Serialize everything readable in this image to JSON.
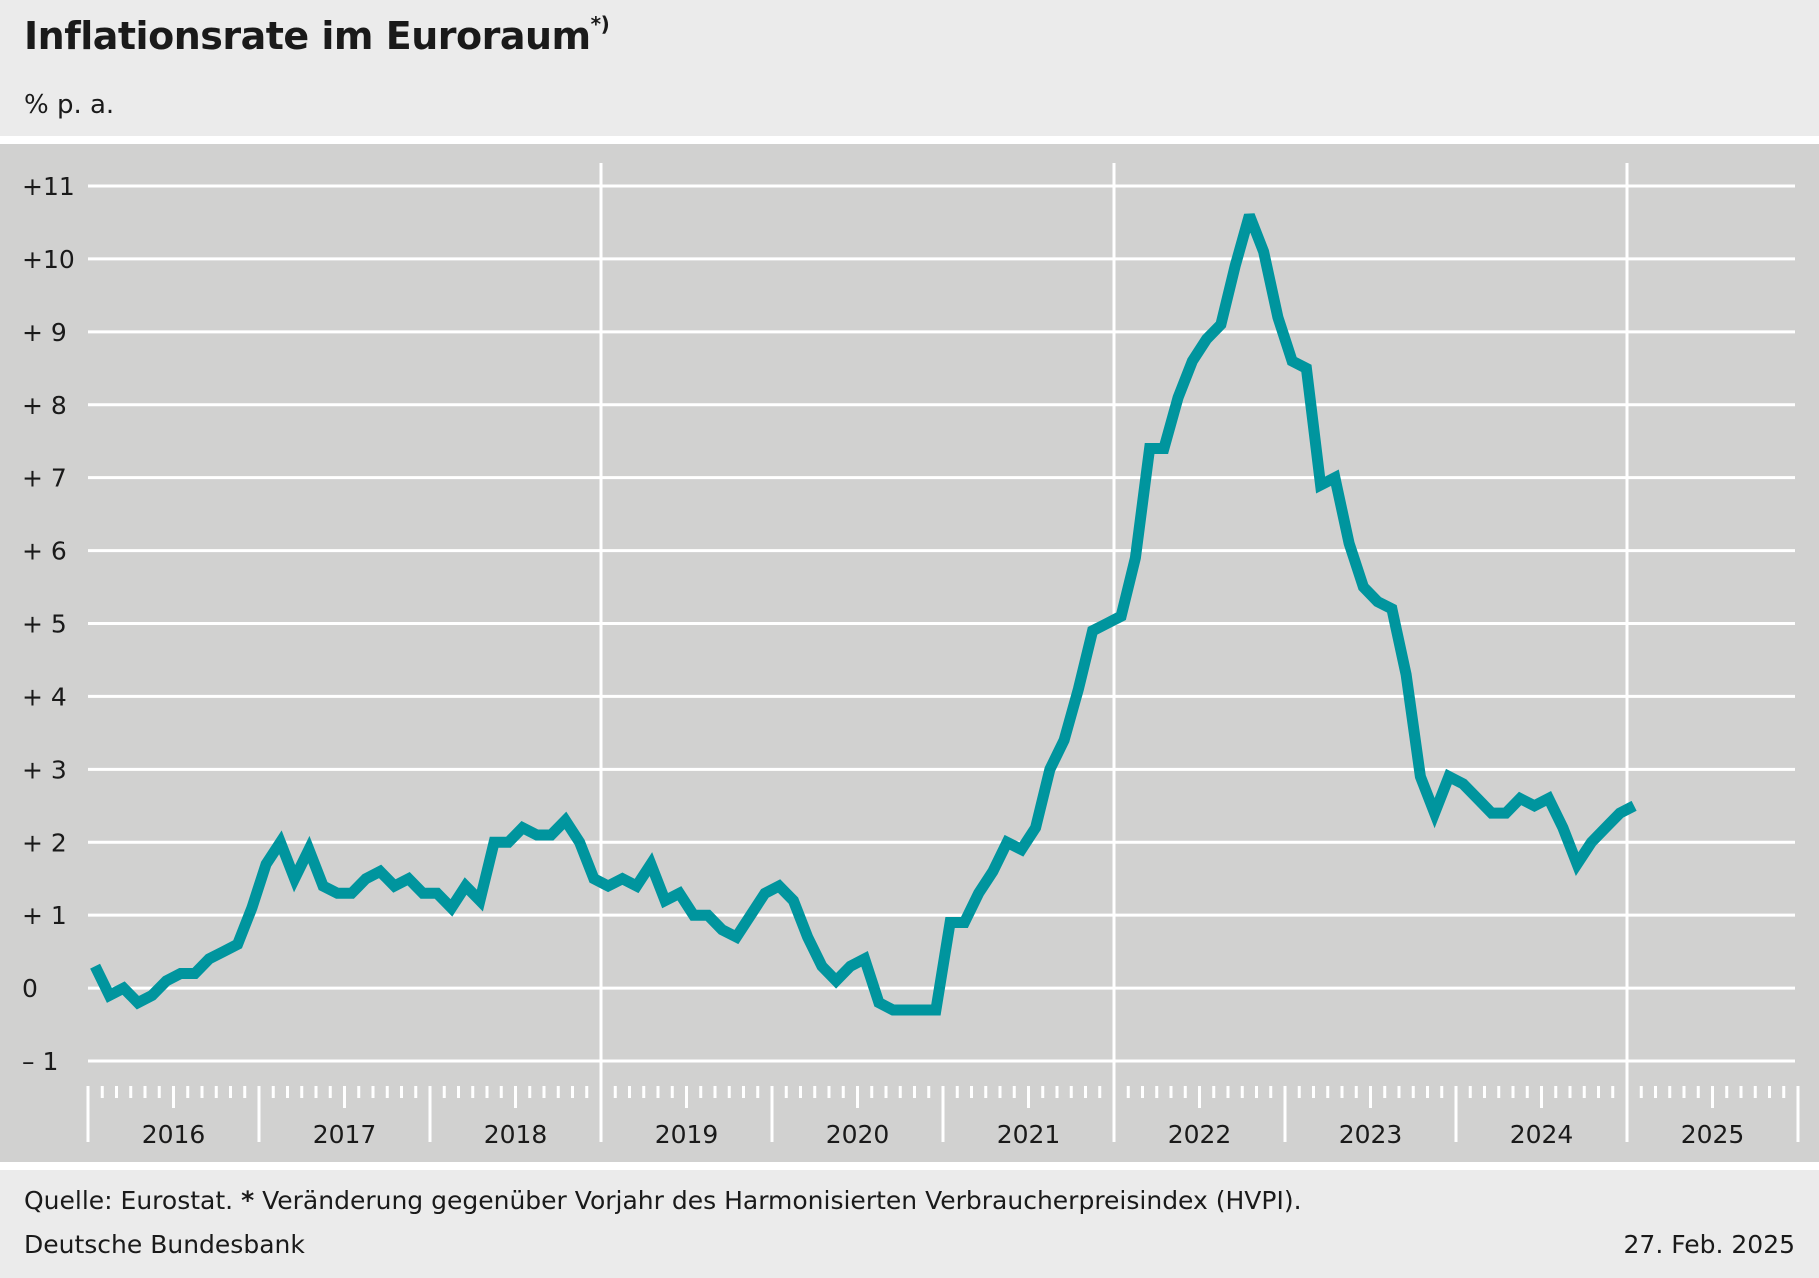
{
  "header": {
    "title": "Inflationsrate im Euroraum",
    "title_marker": "*)",
    "unit": "% p. a."
  },
  "footer": {
    "source_prefix": "Quelle: Eurostat.",
    "source_marker": "*",
    "source_note": "Veränderung gegenüber Vorjahr des Harmonisierten Verbraucherpreisindex (HVPI).",
    "organization": "Deutsche Bundesbank",
    "date": "27. Feb. 2025"
  },
  "colors": {
    "line": "#00959e",
    "plot_background": "#d1d1d0",
    "grid": "#ffffff",
    "page_background": "#ebebeb"
  },
  "chart_data": {
    "type": "line",
    "title": "Inflationsrate im Euroraum",
    "ylabel": "% p. a.",
    "ylim": [
      -1,
      11
    ],
    "xlim": [
      "2016-01",
      "2025-12"
    ],
    "grid": true,
    "y_ticks": [
      {
        "value": 11,
        "label": "+11"
      },
      {
        "value": 10,
        "label": "+10"
      },
      {
        "value": 9,
        "label": "+  9"
      },
      {
        "value": 8,
        "label": "+  8"
      },
      {
        "value": 7,
        "label": "+  7"
      },
      {
        "value": 6,
        "label": "+  6"
      },
      {
        "value": 5,
        "label": "+  5"
      },
      {
        "value": 4,
        "label": "+  4"
      },
      {
        "value": 3,
        "label": "+  3"
      },
      {
        "value": 2,
        "label": "+  2"
      },
      {
        "value": 1,
        "label": "+  1"
      },
      {
        "value": 0,
        "label": "0"
      },
      {
        "value": -1,
        "label": "–  1"
      }
    ],
    "x_tick_labels": [
      "2016",
      "2017",
      "2018",
      "2019",
      "2020",
      "2021",
      "2022",
      "2023",
      "2024",
      "2025"
    ],
    "x_emphasis_lines": [
      "2019",
      "2022",
      "2025"
    ],
    "series": [
      {
        "start": "2016-01",
        "frequency": "monthly",
        "values": [
          0.3,
          -0.1,
          0.0,
          -0.2,
          -0.1,
          0.1,
          0.2,
          0.2,
          0.4,
          0.5,
          0.6,
          1.1,
          1.7,
          2.0,
          1.5,
          1.9,
          1.4,
          1.3,
          1.3,
          1.5,
          1.6,
          1.4,
          1.5,
          1.3,
          1.3,
          1.1,
          1.4,
          1.2,
          2.0,
          2.0,
          2.2,
          2.1,
          2.1,
          2.3,
          2.0,
          1.5,
          1.4,
          1.5,
          1.4,
          1.7,
          1.2,
          1.3,
          1.0,
          1.0,
          0.8,
          0.7,
          1.0,
          1.3,
          1.4,
          1.2,
          0.7,
          0.3,
          0.1,
          0.3,
          0.4,
          -0.2,
          -0.3,
          -0.3,
          -0.3,
          -0.3,
          0.9,
          0.9,
          1.3,
          1.6,
          2.0,
          1.9,
          2.2,
          3.0,
          3.4,
          4.1,
          4.9,
          5.0,
          5.1,
          5.9,
          7.4,
          7.4,
          8.1,
          8.6,
          8.9,
          9.1,
          9.9,
          10.6,
          10.1,
          9.2,
          8.6,
          8.5,
          6.9,
          7.0,
          6.1,
          5.5,
          5.3,
          5.2,
          4.3,
          2.9,
          2.4,
          2.9,
          2.8,
          2.6,
          2.4,
          2.4,
          2.6,
          2.5,
          2.6,
          2.2,
          1.7,
          2.0,
          2.2,
          2.4,
          2.5
        ]
      }
    ]
  }
}
